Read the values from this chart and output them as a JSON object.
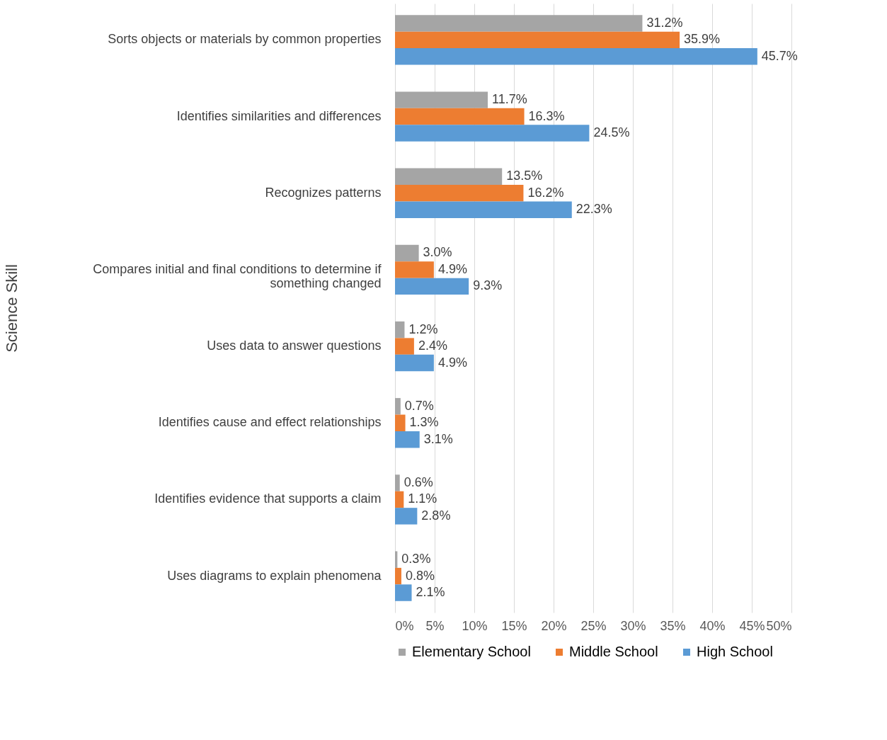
{
  "chart_data": {
    "type": "bar",
    "orientation": "horizontal",
    "ylabel": "Science Skill",
    "categories": [
      "Sorts objects or materials by common properties",
      "Identifies similarities and differences",
      "Recognizes patterns",
      "Compares initial and final conditions to determine if something changed",
      "Uses data to answer questions",
      "Identifies cause and effect relationships",
      "Identifies evidence that supports a claim",
      "Uses diagrams to explain phenomena"
    ],
    "series": [
      {
        "name": "Elementary School",
        "color": "#a5a5a5",
        "values": [
          31.2,
          11.7,
          13.5,
          3.0,
          1.2,
          0.7,
          0.6,
          0.3
        ],
        "value_labels": [
          "31.2%",
          "11.7%",
          "13.5%",
          "3.0%",
          "1.2%",
          "0.7%",
          "0.6%",
          "0.3%"
        ]
      },
      {
        "name": "Middle School",
        "color": "#ed7d31",
        "values": [
          35.9,
          16.3,
          16.2,
          4.9,
          2.4,
          1.3,
          1.1,
          0.8
        ],
        "value_labels": [
          "35.9%",
          "16.3%",
          "16.2%",
          "4.9%",
          "2.4%",
          "1.3%",
          "1.1%",
          "0.8%"
        ]
      },
      {
        "name": "High School",
        "color": "#5b9bd5",
        "values": [
          45.7,
          24.5,
          22.3,
          9.3,
          4.9,
          3.1,
          2.8,
          2.1
        ],
        "value_labels": [
          "45.7%",
          "24.5%",
          "22.3%",
          "9.3%",
          "4.9%",
          "3.1%",
          "2.8%",
          "2.1%"
        ]
      }
    ],
    "xlim": [
      0,
      50
    ],
    "xticks": [
      {
        "value": 0,
        "label": "0%"
      },
      {
        "value": 5,
        "label": "5%"
      },
      {
        "value": 10,
        "label": "10%"
      },
      {
        "value": 15,
        "label": "15%"
      },
      {
        "value": 20,
        "label": "20%"
      },
      {
        "value": 25,
        "label": "25%"
      },
      {
        "value": 30,
        "label": "30%"
      },
      {
        "value": 35,
        "label": "35%"
      },
      {
        "value": 40,
        "label": "40%"
      },
      {
        "value": 45,
        "label": "45%"
      },
      {
        "value": 50,
        "label": "50%"
      }
    ],
    "grid": "x",
    "legend": "bottom"
  }
}
